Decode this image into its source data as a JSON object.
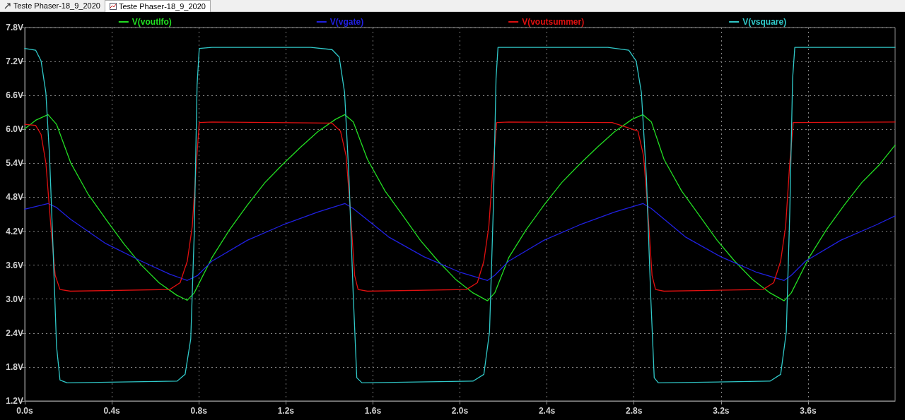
{
  "chart_data": {
    "type": "line",
    "annotations": [
      "Teste Phaser-18_9_2020",
      "Teste Phaser-18_9_2020"
    ],
    "xlim": [
      0,
      4.0
    ],
    "xticks": [
      {
        "value": 0,
        "label": "0.0s"
      },
      {
        "value": 0.4,
        "label": "0.4s"
      },
      {
        "value": 0.8,
        "label": "0.8s"
      },
      {
        "value": 1.2,
        "label": "1.2s"
      },
      {
        "value": 1.6,
        "label": "1.6s"
      },
      {
        "value": 2.0,
        "label": "2.0s"
      },
      {
        "value": 2.4,
        "label": "2.4s"
      },
      {
        "value": 2.8,
        "label": "2.8s"
      },
      {
        "value": 3.2,
        "label": "3.2s"
      },
      {
        "value": 3.6,
        "label": "3.6s"
      }
    ],
    "ylim": [
      1.2,
      7.8
    ],
    "yticks": [
      {
        "value": 1.2,
        "label": "1.2V"
      },
      {
        "value": 1.8,
        "label": "1.8V"
      },
      {
        "value": 2.4,
        "label": "2.4V"
      },
      {
        "value": 3.0,
        "label": "3.0V"
      },
      {
        "value": 3.6,
        "label": "3.6V"
      },
      {
        "value": 4.2,
        "label": "4.2V"
      },
      {
        "value": 4.8,
        "label": "4.8V"
      },
      {
        "value": 5.4,
        "label": "5.4V"
      },
      {
        "value": 6.0,
        "label": "6.0V"
      },
      {
        "value": 6.6,
        "label": "6.6V"
      },
      {
        "value": 7.2,
        "label": "7.2V"
      },
      {
        "value": 7.8,
        "label": "7.8V"
      }
    ],
    "grid": true,
    "legend": "top",
    "marker": "none",
    "line_style": "solid",
    "series": [
      {
        "name": "V(voutlfo)",
        "color": "#22dd22",
        "x": [
          0,
          0.05,
          0.107,
          0.146,
          0.211,
          0.292,
          0.373,
          0.455,
          0.536,
          0.617,
          0.698,
          0.747,
          0.779,
          0.86,
          0.942,
          1.023,
          1.104,
          1.185,
          1.266,
          1.347,
          1.429,
          1.471,
          1.51,
          1.575,
          1.656,
          1.737,
          1.818,
          1.9,
          1.98,
          2.06,
          2.127,
          2.16,
          2.224,
          2.305,
          2.386,
          2.468,
          2.549,
          2.63,
          2.711,
          2.792,
          2.841,
          2.88,
          2.938,
          3.019,
          3.1,
          3.182,
          3.263,
          3.344,
          3.425,
          3.49,
          3.523,
          3.604,
          3.685,
          3.766,
          3.847,
          3.929,
          4.0
        ],
        "values": [
          6.01,
          6.16,
          6.26,
          6.09,
          5.41,
          4.85,
          4.41,
          3.98,
          3.6,
          3.29,
          3.07,
          2.98,
          3.11,
          3.73,
          4.23,
          4.66,
          5.06,
          5.38,
          5.68,
          5.96,
          6.18,
          6.26,
          6.13,
          5.47,
          4.91,
          4.48,
          4.04,
          3.67,
          3.35,
          3.11,
          2.97,
          3.11,
          3.73,
          4.23,
          4.66,
          5.06,
          5.38,
          5.68,
          5.96,
          6.18,
          6.26,
          6.13,
          5.47,
          4.91,
          4.48,
          4.04,
          3.67,
          3.35,
          3.11,
          2.97,
          3.11,
          3.73,
          4.23,
          4.66,
          5.06,
          5.38,
          5.72
        ]
      },
      {
        "name": "V(vgate)",
        "color": "#2020e0",
        "x": [
          0,
          0.107,
          0.146,
          0.211,
          0.373,
          0.536,
          0.666,
          0.747,
          0.795,
          0.86,
          1.023,
          1.185,
          1.347,
          1.471,
          1.51,
          1.672,
          1.834,
          1.997,
          2.127,
          2.16,
          2.224,
          2.386,
          2.549,
          2.711,
          2.841,
          2.88,
          3.036,
          3.198,
          3.36,
          3.49,
          3.523,
          3.588,
          3.75,
          3.912,
          4.0
        ],
        "values": [
          4.59,
          4.69,
          4.62,
          4.41,
          3.98,
          3.67,
          3.44,
          3.33,
          3.42,
          3.67,
          4.04,
          4.31,
          4.54,
          4.69,
          4.6,
          4.1,
          3.75,
          3.48,
          3.33,
          3.42,
          3.67,
          4.04,
          4.31,
          4.54,
          4.69,
          4.6,
          4.1,
          3.75,
          3.48,
          3.33,
          3.42,
          3.67,
          4.04,
          4.31,
          4.47
        ]
      },
      {
        "name": "V(voutsummer)",
        "color": "#e01010",
        "x": [
          0,
          0.05,
          0.075,
          0.097,
          0.12,
          0.14,
          0.162,
          0.21,
          0.666,
          0.714,
          0.747,
          0.77,
          0.789,
          0.802,
          0.86,
          1.412,
          1.451,
          1.477,
          1.497,
          1.516,
          1.532,
          1.575,
          2.03,
          2.08,
          2.11,
          2.133,
          2.153,
          2.169,
          2.224,
          2.7,
          2.818,
          2.844,
          2.864,
          2.883,
          2.899,
          2.938,
          3.393,
          3.442,
          3.474,
          3.497,
          3.516,
          3.532,
          4.0
        ],
        "values": [
          6.09,
          6.07,
          5.91,
          5.41,
          4.29,
          3.42,
          3.17,
          3.14,
          3.17,
          3.29,
          3.67,
          4.29,
          5.41,
          6.12,
          6.13,
          6.11,
          5.97,
          5.53,
          4.54,
          3.42,
          3.17,
          3.14,
          3.17,
          3.29,
          3.67,
          4.29,
          5.41,
          6.12,
          6.13,
          6.12,
          5.97,
          5.53,
          4.54,
          3.42,
          3.17,
          3.14,
          3.17,
          3.29,
          3.67,
          4.29,
          5.41,
          6.12,
          6.13
        ]
      },
      {
        "name": "V(vsquare)",
        "color": "#30c8c8",
        "x": [
          0,
          0.05,
          0.075,
          0.097,
          0.114,
          0.13,
          0.146,
          0.162,
          0.195,
          0.7,
          0.737,
          0.763,
          0.779,
          0.792,
          0.802,
          0.86,
          1.315,
          1.412,
          1.445,
          1.47,
          1.49,
          1.51,
          1.526,
          1.55,
          2.06,
          2.11,
          2.136,
          2.153,
          2.166,
          2.175,
          2.68,
          2.776,
          2.81,
          2.834,
          2.857,
          2.877,
          2.893,
          2.912,
          3.425,
          3.474,
          3.5,
          3.516,
          3.529,
          3.539,
          4.0
        ],
        "values": [
          7.43,
          7.4,
          7.21,
          6.65,
          5.53,
          3.91,
          2.17,
          1.57,
          1.52,
          1.55,
          1.67,
          2.3,
          4.16,
          6.78,
          7.43,
          7.45,
          7.45,
          7.41,
          7.28,
          6.65,
          5.16,
          3.04,
          1.61,
          1.52,
          1.55,
          1.67,
          2.42,
          4.54,
          6.9,
          7.45,
          7.45,
          7.4,
          7.21,
          6.65,
          5.16,
          3.04,
          1.61,
          1.52,
          1.55,
          1.67,
          2.42,
          4.54,
          6.9,
          7.45,
          7.45
        ]
      }
    ]
  }
}
